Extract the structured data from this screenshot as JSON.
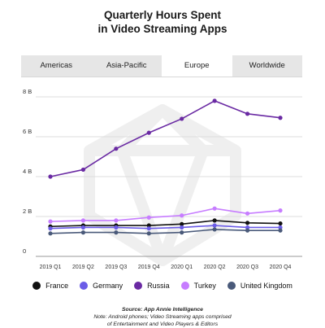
{
  "header": {
    "title_line1": "Quarterly Hours Spent",
    "title_line2": "in Video Streaming Apps"
  },
  "tabs": [
    {
      "label": "Americas",
      "active": false
    },
    {
      "label": "Asia-Pacific",
      "active": false
    },
    {
      "label": "Europe",
      "active": true
    },
    {
      "label": "Worldwide",
      "active": false
    }
  ],
  "footer": {
    "source": "Source: App Annie Intelligence",
    "note1": "Note: Android phones; Video Streaming apps comprised",
    "note2": "of Entertainment and Video Players & Editors"
  },
  "chart_data": {
    "type": "line",
    "x": [
      "2019 Q1",
      "2019 Q2",
      "2019 Q3",
      "2019 Q4",
      "2020 Q1",
      "2020 Q2",
      "2020 Q3",
      "2020 Q4"
    ],
    "ylim": [
      0,
      8
    ],
    "yticks": [
      0,
      2,
      4,
      6,
      8
    ],
    "ytick_labels": [
      "0",
      "2 B",
      "4 B",
      "6 B",
      "8 B"
    ],
    "grid": true,
    "legend_position": "bottom",
    "series": [
      {
        "name": "France",
        "color": "#111111",
        "values": [
          1.5,
          1.55,
          1.55,
          1.55,
          1.62,
          1.8,
          1.68,
          1.65
        ]
      },
      {
        "name": "Germany",
        "color": "#6b5ce7",
        "values": [
          1.4,
          1.45,
          1.45,
          1.4,
          1.45,
          1.55,
          1.45,
          1.45
        ]
      },
      {
        "name": "Russia",
        "color": "#6a2aa3",
        "values": [
          4.0,
          4.35,
          5.4,
          6.2,
          6.9,
          7.8,
          7.15,
          6.95
        ]
      },
      {
        "name": "Turkey",
        "color": "#c77dff",
        "values": [
          1.75,
          1.8,
          1.8,
          1.95,
          2.05,
          2.4,
          2.15,
          2.3
        ]
      },
      {
        "name": "United Kingdom",
        "color": "#4a5a7a",
        "values": [
          1.15,
          1.2,
          1.2,
          1.15,
          1.2,
          1.35,
          1.3,
          1.3
        ]
      }
    ]
  }
}
